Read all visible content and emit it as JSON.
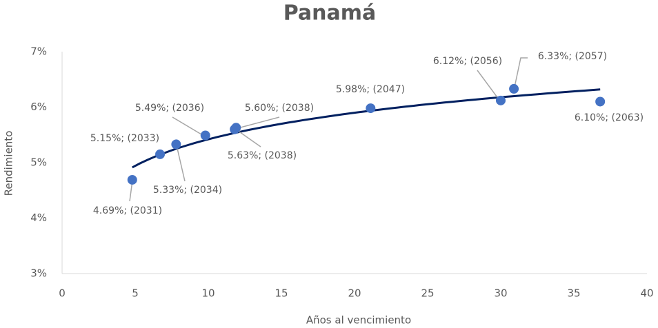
{
  "chart_data": {
    "type": "scatter",
    "title": "Panamá",
    "xlabel": "Años al vencimiento",
    "ylabel": "Rendimiento",
    "color": "#4472c4",
    "trendline": {
      "type": "log",
      "color": "#002060"
    },
    "x": [
      4.8,
      6.7,
      7.8,
      9.8,
      11.8,
      11.9,
      21.1,
      30.0,
      30.9,
      36.8
    ],
    "values": [
      4.69,
      5.15,
      5.33,
      5.49,
      5.6,
      5.63,
      5.98,
      6.12,
      6.33,
      6.1
    ],
    "value_labels": [
      "4.69%; (2031)",
      "5.15%; (2033)",
      "5.33%; (2034)",
      "5.49%; (2036)",
      "5.60%; (2038)",
      "5.63%; (2038)",
      "5.98%; (2047)",
      "6.12%; (2056)",
      "6.33%; (2057)",
      "6.10%; (2063)"
    ],
    "xlim": [
      0,
      40
    ],
    "xticks": [
      0,
      5,
      10,
      15,
      20,
      25,
      30,
      35,
      40
    ],
    "ylim": [
      3,
      7
    ],
    "yticks": [
      {
        "value": 3,
        "label": "3%"
      },
      {
        "value": 4,
        "label": "4%"
      },
      {
        "value": 5,
        "label": "5%"
      },
      {
        "value": 6,
        "label": "6%"
      },
      {
        "value": 7,
        "label": "7%"
      }
    ]
  }
}
